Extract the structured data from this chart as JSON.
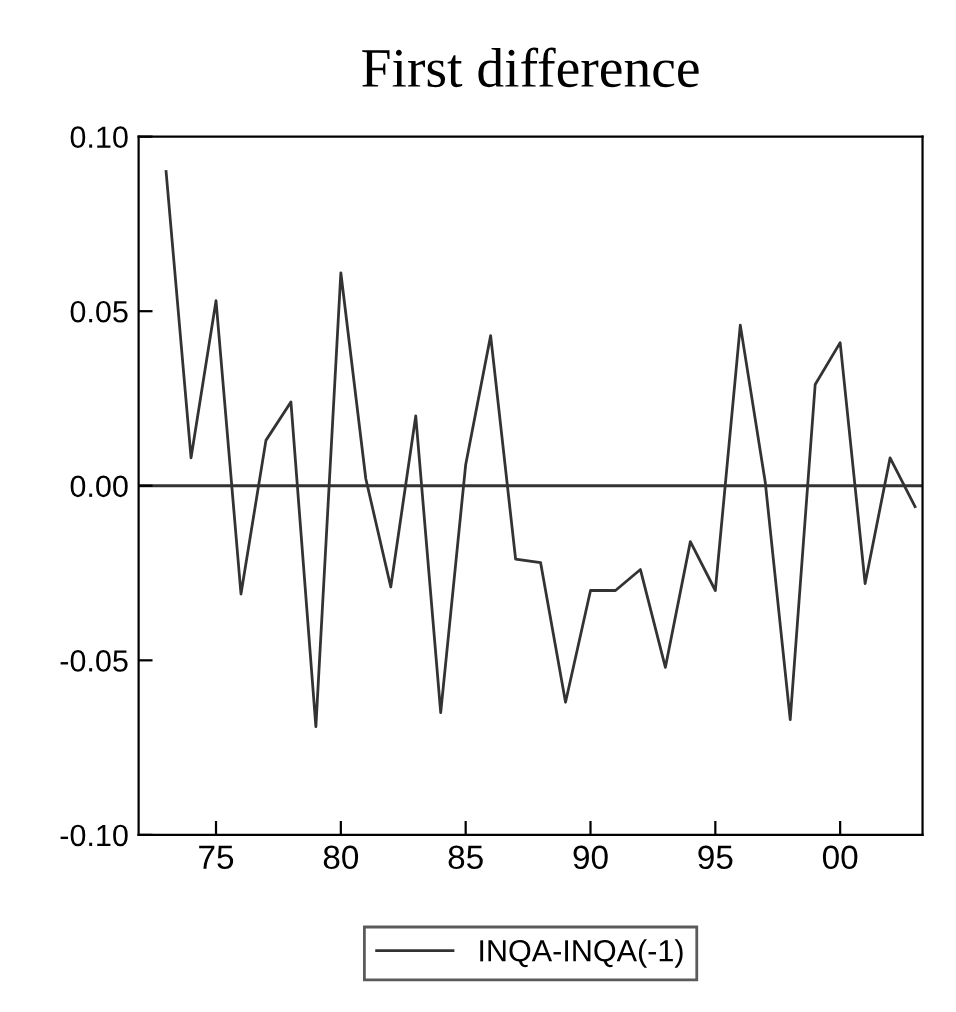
{
  "chart_data": {
    "type": "line",
    "title": "First difference",
    "x": [
      1973,
      1974,
      1975,
      1976,
      1977,
      1978,
      1979,
      1980,
      1981,
      1982,
      1983,
      1984,
      1985,
      1986,
      1987,
      1988,
      1989,
      1990,
      1991,
      1992,
      1993,
      1994,
      1995,
      1996,
      1997,
      1998,
      1999,
      2000,
      2001,
      2002,
      2003
    ],
    "series": [
      {
        "name": "INQA-INQA(-1)",
        "color": "#333333",
        "values": [
          0.09,
          0.008,
          0.053,
          -0.031,
          0.013,
          0.024,
          -0.069,
          0.061,
          0.002,
          -0.029,
          0.02,
          -0.065,
          0.006,
          0.043,
          -0.021,
          -0.022,
          -0.062,
          -0.03,
          -0.03,
          -0.024,
          -0.052,
          -0.016,
          -0.03,
          0.046,
          0.001,
          -0.067,
          0.029,
          0.041,
          -0.028,
          0.008,
          -0.006
        ]
      }
    ],
    "xlim": [
      1971.9,
      2003.3
    ],
    "ylim": [
      -0.1,
      0.1
    ],
    "xticks": [
      {
        "value": 1975,
        "label": "75"
      },
      {
        "value": 1980,
        "label": "80"
      },
      {
        "value": 1985,
        "label": "85"
      },
      {
        "value": 1990,
        "label": "90"
      },
      {
        "value": 1995,
        "label": "95"
      },
      {
        "value": 2000,
        "label": "00"
      }
    ],
    "yticks": [
      {
        "value": -0.1,
        "label": "-0.10"
      },
      {
        "value": -0.05,
        "label": "-0.05"
      },
      {
        "value": 0.0,
        "label": "0.00"
      },
      {
        "value": 0.05,
        "label": "0.05"
      },
      {
        "value": 0.1,
        "label": "0.10"
      }
    ],
    "ref_lines": [
      {
        "axis": "y",
        "value": 0,
        "color": "#333333"
      }
    ],
    "legend": "bottom",
    "grid": false,
    "marker": "none",
    "line_style": "solid"
  }
}
